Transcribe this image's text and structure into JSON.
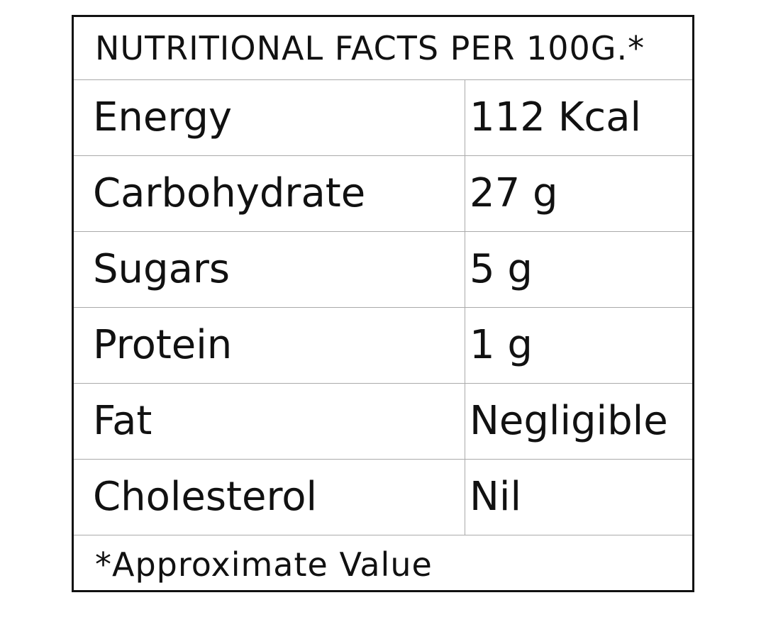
{
  "table": {
    "title": "NUTRITIONAL FACTS PER 100G.*",
    "rows": [
      [
        "Energy",
        "112 Kcal"
      ],
      [
        "Carbohydrate",
        "27 g"
      ],
      [
        "Sugars",
        "5 g"
      ],
      [
        "Protein",
        "1 g"
      ],
      [
        "Fat",
        "Negligible"
      ],
      [
        "Cholesterol",
        "Nil"
      ]
    ],
    "footnote": "*Approximate Value"
  }
}
